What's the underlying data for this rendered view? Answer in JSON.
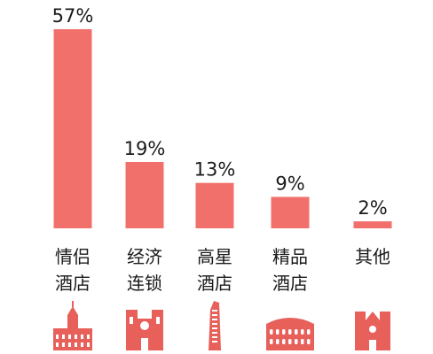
{
  "chart_data": {
    "type": "bar",
    "categories": [
      [
        "情侣",
        "酒店"
      ],
      [
        "经济",
        "连锁"
      ],
      [
        "高星",
        "酒店"
      ],
      [
        "精品",
        "酒店"
      ],
      [
        "其他"
      ]
    ],
    "values": [
      57,
      19,
      13,
      9,
      2
    ],
    "value_labels": [
      "57%",
      "19%",
      "13%",
      "9%",
      "2%"
    ],
    "title": "",
    "xlabel": "",
    "ylabel": "",
    "ylim": [
      0,
      57
    ],
    "grid": false,
    "legend": "none"
  },
  "colors": {
    "bar": "#f2706b",
    "text": "#1a1a1a",
    "icon": "#e8605a"
  },
  "icons": [
    "building-icon",
    "cathedral-icon",
    "tower-icon",
    "colosseum-icon",
    "church-icon"
  ]
}
